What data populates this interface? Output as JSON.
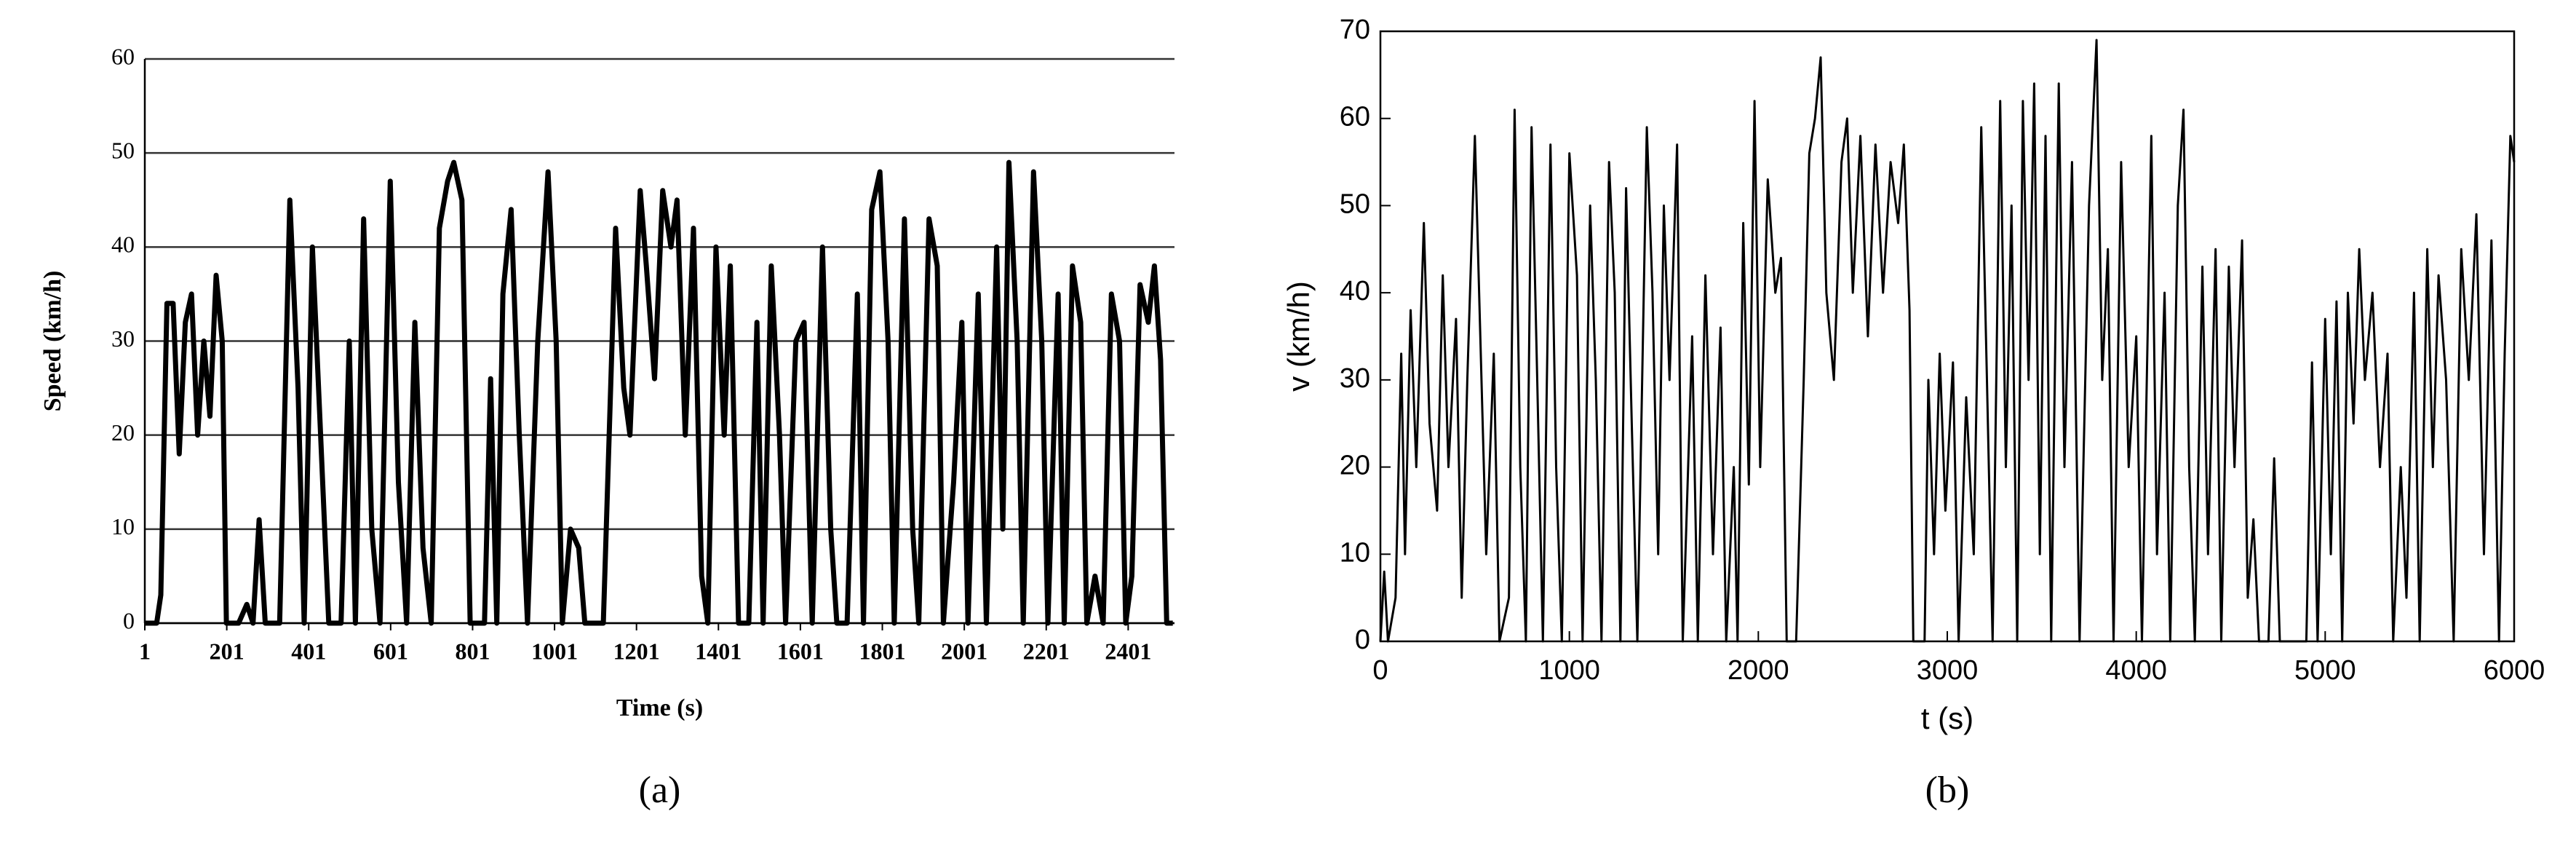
{
  "chart_data": [
    {
      "type": "line",
      "caption": "(a)",
      "xlabel": "Time (s)",
      "ylabel": "Speed (km/h)",
      "color": "#000000",
      "grid": true,
      "xlim": [
        1,
        2514
      ],
      "ylim": [
        0,
        60
      ],
      "xticks": [
        1,
        201,
        401,
        601,
        801,
        1001,
        1201,
        1401,
        1601,
        1801,
        2001,
        2201,
        2401
      ],
      "yticks": [
        0,
        10,
        20,
        30,
        40,
        50,
        60
      ],
      "x": [
        1,
        30,
        40,
        55,
        70,
        85,
        100,
        115,
        130,
        145,
        160,
        175,
        190,
        200,
        230,
        250,
        265,
        280,
        295,
        330,
        355,
        375,
        390,
        410,
        430,
        450,
        480,
        500,
        515,
        535,
        555,
        575,
        600,
        620,
        640,
        660,
        680,
        700,
        720,
        740,
        755,
        775,
        795,
        830,
        845,
        860,
        875,
        895,
        915,
        935,
        960,
        985,
        1005,
        1020,
        1040,
        1060,
        1075,
        1120,
        1150,
        1170,
        1185,
        1210,
        1225,
        1245,
        1265,
        1285,
        1300,
        1320,
        1340,
        1360,
        1375,
        1395,
        1415,
        1430,
        1450,
        1475,
        1495,
        1510,
        1530,
        1550,
        1565,
        1590,
        1610,
        1630,
        1655,
        1675,
        1690,
        1715,
        1740,
        1755,
        1775,
        1795,
        1815,
        1830,
        1855,
        1875,
        1890,
        1915,
        1935,
        1950,
        1975,
        1995,
        2010,
        2035,
        2055,
        2080,
        2095,
        2110,
        2130,
        2145,
        2170,
        2190,
        2205,
        2230,
        2245,
        2265,
        2285,
        2300,
        2320,
        2340,
        2360,
        2380,
        2395,
        2410,
        2430,
        2450,
        2465,
        2480,
        2495,
        2510
      ],
      "values": [
        0,
        0,
        3,
        34,
        34,
        18,
        32,
        35,
        20,
        30,
        22,
        37,
        30,
        0,
        0,
        2,
        0,
        11,
        0,
        0,
        45,
        25,
        0,
        40,
        20,
        0,
        0,
        30,
        0,
        43,
        10,
        0,
        47,
        15,
        0,
        32,
        8,
        0,
        42,
        47,
        49,
        45,
        0,
        0,
        26,
        0,
        35,
        44,
        20,
        0,
        30,
        48,
        30,
        0,
        10,
        8,
        0,
        0,
        42,
        25,
        20,
        46,
        38,
        26,
        46,
        40,
        45,
        20,
        42,
        5,
        0,
        40,
        20,
        38,
        0,
        0,
        32,
        0,
        38,
        20,
        0,
        30,
        32,
        0,
        40,
        10,
        0,
        0,
        35,
        0,
        44,
        48,
        30,
        0,
        43,
        10,
        0,
        43,
        38,
        0,
        15,
        32,
        0,
        35,
        0,
        40,
        10,
        49,
        30,
        0,
        48,
        30,
        0,
        35,
        0,
        38,
        32,
        0,
        5,
        0,
        35,
        30,
        0,
        5,
        36,
        32,
        38,
        28,
        0,
        0
      ]
    },
    {
      "type": "line",
      "caption": "(b)",
      "xlabel": "t (s)",
      "ylabel": "v (km/h)",
      "color": "#000000",
      "grid": false,
      "xlim": [
        0,
        6000
      ],
      "ylim": [
        0,
        70
      ],
      "xticks": [
        0,
        1000,
        2000,
        3000,
        4000,
        5000,
        6000
      ],
      "yticks": [
        0,
        10,
        20,
        30,
        40,
        50,
        60,
        70
      ],
      "x": [
        0,
        20,
        40,
        80,
        110,
        130,
        160,
        190,
        230,
        260,
        300,
        330,
        360,
        400,
        430,
        460,
        500,
        530,
        560,
        600,
        630,
        680,
        710,
        740,
        770,
        800,
        830,
        860,
        900,
        930,
        960,
        1000,
        1040,
        1070,
        1110,
        1140,
        1170,
        1210,
        1240,
        1270,
        1300,
        1330,
        1360,
        1410,
        1440,
        1470,
        1500,
        1530,
        1570,
        1600,
        1650,
        1680,
        1720,
        1760,
        1800,
        1830,
        1870,
        1890,
        1920,
        1950,
        1980,
        2010,
        2050,
        2090,
        2120,
        2150,
        2200,
        2240,
        2270,
        2300,
        2330,
        2360,
        2400,
        2440,
        2470,
        2500,
        2540,
        2580,
        2620,
        2660,
        2700,
        2740,
        2770,
        2800,
        2820,
        2880,
        2900,
        2930,
        2960,
        2990,
        3030,
        3060,
        3100,
        3140,
        3180,
        3210,
        3240,
        3280,
        3310,
        3340,
        3370,
        3400,
        3430,
        3460,
        3490,
        3520,
        3550,
        3590,
        3620,
        3660,
        3700,
        3750,
        3790,
        3820,
        3850,
        3880,
        3920,
        3960,
        4000,
        4030,
        4080,
        4110,
        4150,
        4180,
        4220,
        4250,
        4280,
        4310,
        4350,
        4380,
        4420,
        4450,
        4490,
        4520,
        4560,
        4590,
        4620,
        4650,
        4700,
        4730,
        4760,
        4900,
        4930,
        4960,
        5000,
        5030,
        5060,
        5090,
        5120,
        5150,
        5180,
        5210,
        5250,
        5290,
        5330,
        5360,
        5400,
        5430,
        5470,
        5500,
        5540,
        5570,
        5600,
        5640,
        5680,
        5720,
        5760,
        5800,
        5840,
        5880,
        5920,
        5950,
        5980,
        6000
      ],
      "values": [
        0,
        8,
        0,
        5,
        33,
        10,
        38,
        20,
        48,
        25,
        15,
        42,
        20,
        37,
        5,
        30,
        58,
        34,
        10,
        33,
        0,
        5,
        61,
        20,
        0,
        59,
        30,
        0,
        57,
        20,
        0,
        56,
        42,
        0,
        50,
        30,
        0,
        55,
        40,
        0,
        52,
        25,
        0,
        59,
        40,
        10,
        50,
        30,
        57,
        0,
        35,
        0,
        42,
        10,
        36,
        0,
        20,
        0,
        48,
        18,
        62,
        20,
        53,
        40,
        44,
        0,
        0,
        30,
        56,
        60,
        67,
        40,
        30,
        55,
        60,
        40,
        58,
        35,
        57,
        40,
        55,
        48,
        57,
        38,
        0,
        0,
        30,
        10,
        33,
        15,
        32,
        0,
        28,
        10,
        59,
        30,
        0,
        62,
        20,
        50,
        0,
        62,
        30,
        64,
        10,
        58,
        0,
        64,
        20,
        55,
        0,
        50,
        69,
        30,
        45,
        0,
        55,
        20,
        35,
        0,
        58,
        10,
        40,
        0,
        50,
        61,
        20,
        0,
        43,
        10,
        45,
        0,
        43,
        20,
        46,
        5,
        14,
        0,
        0,
        21,
        0,
        0,
        32,
        0,
        37,
        10,
        39,
        0,
        40,
        25,
        45,
        30,
        40,
        20,
        33,
        0,
        20,
        5,
        40,
        0,
        45,
        20,
        42,
        30,
        0,
        45,
        30,
        49,
        10,
        46,
        0,
        33,
        58,
        55
      ]
    }
  ]
}
